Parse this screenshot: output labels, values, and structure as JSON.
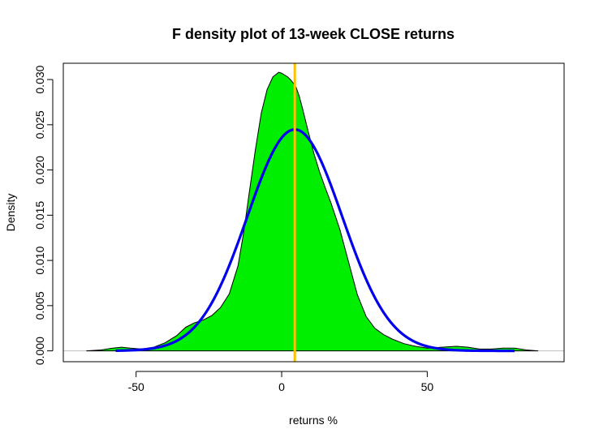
{
  "chart_data": {
    "type": "area",
    "title": "F density plot of 13-week CLOSE returns",
    "xlabel": "returns %",
    "ylabel": "Density",
    "xlim": [
      -75,
      97
    ],
    "ylim": [
      -0.0012,
      0.0318
    ],
    "x_ticks": [
      -50,
      0,
      50
    ],
    "x_tick_labels": [
      "-50",
      "0",
      "50"
    ],
    "y_ticks": [
      0.0,
      0.005,
      0.01,
      0.015,
      0.02,
      0.025,
      0.03
    ],
    "y_tick_labels": [
      "0.000",
      "0.005",
      "0.010",
      "0.015",
      "0.020",
      "0.025",
      "0.030"
    ],
    "grid": false,
    "series": [
      {
        "kind": "empirical-density",
        "color": "#00ee00",
        "outline": "#000000",
        "x": [
          -67,
          -62,
          -58,
          -55,
          -52,
          -48,
          -44,
          -40,
          -36,
          -33,
          -30,
          -27,
          -24,
          -21,
          -18,
          -15,
          -13,
          -11,
          -9,
          -7,
          -5,
          -3,
          -1,
          0,
          1,
          2,
          3,
          4,
          5,
          6,
          7,
          9,
          11,
          13,
          15,
          17,
          20,
          23,
          26,
          29,
          32,
          35,
          38,
          42,
          46,
          50,
          55,
          60,
          64,
          68,
          72,
          76,
          80,
          84,
          88
        ],
        "y": [
          0.0,
          0.0001,
          0.0003,
          0.0004,
          0.0003,
          0.0002,
          0.0004,
          0.0009,
          0.0017,
          0.0026,
          0.0031,
          0.0034,
          0.0039,
          0.0048,
          0.0063,
          0.0094,
          0.0132,
          0.0178,
          0.0223,
          0.0263,
          0.0289,
          0.0303,
          0.0308,
          0.0307,
          0.0305,
          0.0303,
          0.03,
          0.0296,
          0.0291,
          0.0282,
          0.027,
          0.0244,
          0.0219,
          0.0198,
          0.018,
          0.0163,
          0.0134,
          0.0098,
          0.0062,
          0.0038,
          0.0025,
          0.0018,
          0.0013,
          0.0008,
          0.0005,
          0.0003,
          0.0004,
          0.0005,
          0.0004,
          0.0002,
          0.0002,
          0.0003,
          0.0003,
          0.0001,
          0.0
        ]
      },
      {
        "kind": "normal-fit",
        "color": "#0000ee",
        "mean": 4.5,
        "sd": 16.3,
        "x_range": [
          -57,
          80
        ]
      }
    ],
    "mean_line": {
      "x": 4.5,
      "color": "#ffc000"
    },
    "zero_line_color": "#bebebe"
  }
}
